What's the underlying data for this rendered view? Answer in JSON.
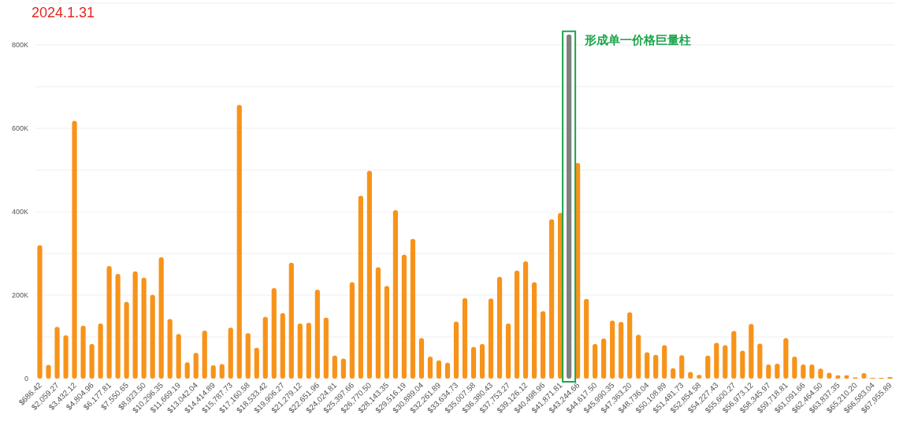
{
  "chart_data": {
    "type": "bar",
    "title": "2024.1.31",
    "categories": [
      "$686.42",
      null,
      "$2,059.27",
      null,
      "$3,432.12",
      null,
      "$4,804.96",
      null,
      "$6,177.81",
      null,
      "$7,550.65",
      null,
      "$8,923.50",
      null,
      "$10,296.35",
      null,
      "$11,669.19",
      null,
      "$13,042.04",
      null,
      "$14,414.89",
      null,
      "$15,787.73",
      null,
      "$17,160.58",
      null,
      "$18,533.42",
      null,
      "$19,906.27",
      null,
      "$21,279.12",
      null,
      "$22,651.96",
      null,
      "$24,024.81",
      null,
      "$25,397.66",
      null,
      "$26,770.50",
      null,
      "$28,143.35",
      null,
      "$29,516.19",
      null,
      "$30,889.04",
      null,
      "$32,261.89",
      null,
      "$33,634.73",
      null,
      "$35,007.58",
      null,
      "$36,380.43",
      null,
      "$37,753.27",
      null,
      "$39,126.12",
      null,
      "$40,498.96",
      null,
      "$41,871.81",
      null,
      "$43,244.66",
      null,
      "$44,617.50",
      null,
      "$45,990.35",
      null,
      "$47,363.20",
      null,
      "$48,736.04",
      null,
      "$50,108.89",
      null,
      "$51,481.73",
      null,
      "$52,854.58",
      null,
      "$54,227.43",
      null,
      "$55,600.27",
      null,
      "$56,973.12",
      null,
      "$58,345.97",
      null,
      "$59,718.81",
      null,
      "$61,091.66",
      null,
      "$62,464.50",
      null,
      "$63,837.35",
      null,
      "$65,210.20",
      null,
      "$66,583.04",
      null,
      "$67,955.89"
    ],
    "values": [
      320000,
      33000,
      124000,
      104000,
      618000,
      127000,
      83000,
      132000,
      270000,
      251000,
      184000,
      257000,
      242000,
      201000,
      291000,
      143000,
      107000,
      39000,
      62000,
      115000,
      32000,
      35000,
      122000,
      656000,
      109000,
      74000,
      148000,
      217000,
      157000,
      278000,
      132000,
      134000,
      213000,
      146000,
      55000,
      48000,
      231000,
      438000,
      498000,
      267000,
      222000,
      404000,
      297000,
      335000,
      97000,
      53000,
      44000,
      38000,
      137000,
      193000,
      76000,
      83000,
      192000,
      244000,
      132000,
      259000,
      281000,
      231000,
      162000,
      382000,
      397000,
      825000,
      517000,
      191000,
      83000,
      96000,
      139000,
      136000,
      159000,
      105000,
      63000,
      57000,
      80000,
      25000,
      56000,
      16000,
      9000,
      55000,
      86000,
      80000,
      114000,
      67000,
      131000,
      84000,
      34000,
      36000,
      97000,
      53000,
      34000,
      34000,
      24000,
      14000,
      8000,
      8000,
      3000,
      13000,
      2000,
      2000,
      4000
    ],
    "colors": [
      "#f7931a",
      "#f7931a",
      "#f7931a",
      "#f7931a",
      "#f7931a",
      "#f7931a",
      "#f7931a",
      "#f7931a",
      "#f7931a",
      "#f7931a",
      "#f7931a",
      "#f7931a",
      "#f7931a",
      "#f7931a",
      "#f7931a",
      "#f7931a",
      "#f7931a",
      "#f7931a",
      "#f7931a",
      "#f7931a",
      "#f7931a",
      "#f7931a",
      "#f7931a",
      "#f7931a",
      "#f7931a",
      "#f7931a",
      "#f7931a",
      "#f7931a",
      "#f7931a",
      "#f7931a",
      "#f7931a",
      "#f7931a",
      "#f7931a",
      "#f7931a",
      "#f7931a",
      "#f7931a",
      "#f7931a",
      "#f7931a",
      "#f7931a",
      "#f7931a",
      "#f7931a",
      "#f7931a",
      "#f7931a",
      "#f7931a",
      "#f7931a",
      "#f7931a",
      "#f7931a",
      "#f7931a",
      "#f7931a",
      "#f7931a",
      "#f7931a",
      "#f7931a",
      "#f7931a",
      "#f7931a",
      "#f7931a",
      "#f7931a",
      "#f7931a",
      "#f7931a",
      "#f7931a",
      "#f7931a",
      "#f7931a",
      "#808080",
      "#f7931a",
      "#f7931a",
      "#f7931a",
      "#f7931a",
      "#f7931a",
      "#f7931a",
      "#f7931a",
      "#f7931a",
      "#f7931a",
      "#f7931a",
      "#f7931a",
      "#f7931a",
      "#f7931a",
      "#f7931a",
      "#f7931a",
      "#f7931a",
      "#f7931a",
      "#f7931a",
      "#f7931a",
      "#f7931a",
      "#f7931a",
      "#f7931a",
      "#f7931a",
      "#f7931a",
      "#f7931a",
      "#f7931a",
      "#f7931a",
      "#f7931a",
      "#f7931a",
      "#f7931a",
      "#f7931a",
      "#f7931a",
      "#f7931a",
      "#f7931a",
      "#f7931a",
      "#f7931a",
      "#f7931a"
    ],
    "annotations": [
      "形成单一价格巨量柱"
    ],
    "ylim": [
      0,
      900000
    ],
    "yticks": [
      0,
      {
        "value": 100000,
        "label": null
      },
      {
        "value": 200000,
        "label": "200K"
      },
      {
        "value": 300000,
        "label": null
      },
      {
        "value": 400000,
        "label": "400K"
      },
      {
        "value": 500000,
        "label": null
      },
      {
        "value": 600000,
        "label": "600K"
      },
      {
        "value": 700000,
        "label": null
      },
      {
        "value": 800000,
        "label": "800K"
      },
      {
        "value": 900000,
        "label": null
      }
    ],
    "grid": "y"
  }
}
